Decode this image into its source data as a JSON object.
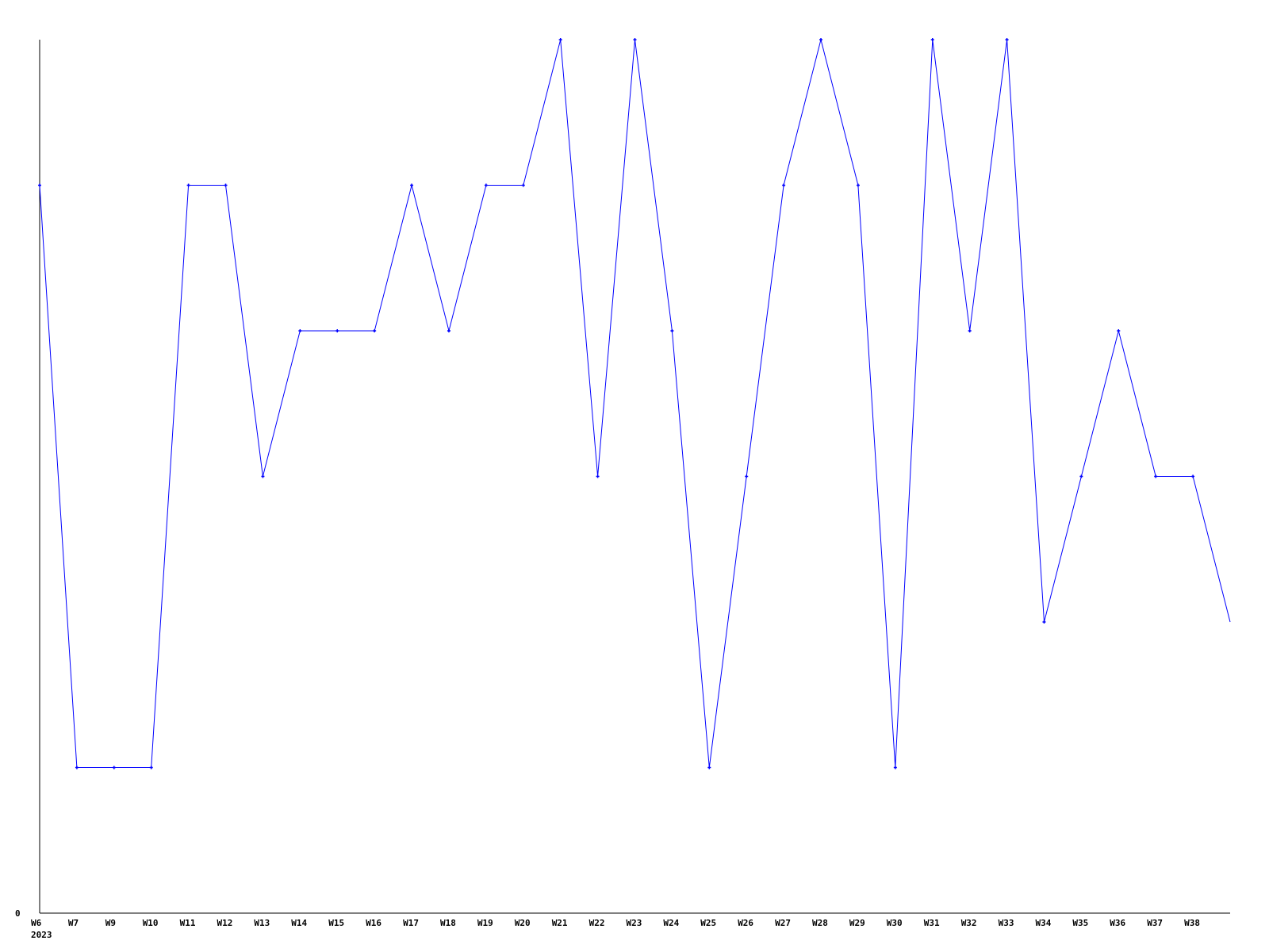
{
  "chart_data": {
    "type": "line",
    "title": "",
    "xlabel": "",
    "ylabel": "",
    "year_label": "2023",
    "y_tick_labels": [
      "0"
    ],
    "ylim": [
      0,
      6
    ],
    "grid": false,
    "line_color": "#0000ff",
    "axis_color": "#000000",
    "categories": [
      "W6",
      "W7",
      "W9",
      "W10",
      "W11",
      "W12",
      "W13",
      "W14",
      "W15",
      "W16",
      "W17",
      "W18",
      "W19",
      "W20",
      "W21",
      "W22",
      "W23",
      "W24",
      "W25",
      "W26",
      "W27",
      "W28",
      "W29",
      "W30",
      "W31",
      "W32",
      "W33",
      "W34",
      "W35",
      "W36",
      "W37",
      "W38",
      ""
    ],
    "values": [
      5,
      1,
      1,
      1,
      5,
      5,
      3,
      4,
      4,
      4,
      5,
      4,
      5,
      5,
      6,
      3,
      6,
      4,
      1,
      3,
      5,
      6,
      5,
      1,
      6,
      4,
      6,
      2,
      3,
      4,
      3,
      3,
      2
    ]
  }
}
